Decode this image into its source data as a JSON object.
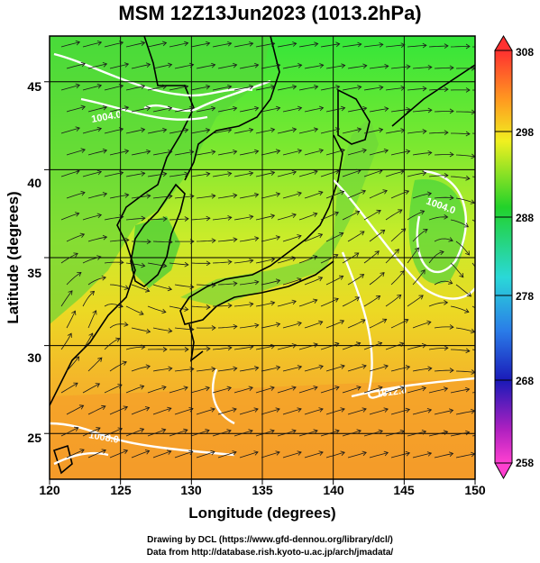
{
  "title": "MSM 12Z13Jun2023 (1013.2hPa)",
  "credit_line1": "Drawing by DCL (https://www.gfd-dennou.org/library/dcl/)",
  "credit_line2": "Data from http://database.rish.kyoto-u.ac.jp/arch/jmadata/",
  "chart_data": {
    "type": "heatmap",
    "xlabel": "Longitude (degrees)",
    "ylabel": "Latitude  (degrees)",
    "xlim": [
      120,
      150
    ],
    "ylim": [
      22.4,
      47.6
    ],
    "xticks": [
      "120",
      "125",
      "130",
      "135",
      "140",
      "145",
      "150"
    ],
    "yticks": [
      "25",
      "30",
      "35",
      "40",
      "45"
    ],
    "colorbar": {
      "ticks": [
        "308",
        "298",
        "288",
        "278",
        "268",
        "258"
      ],
      "range": [
        258,
        308
      ]
    },
    "contour_labels": [
      "1004.0",
      "1004.0",
      "1008.0",
      "1012.0"
    ],
    "grid": true
  }
}
